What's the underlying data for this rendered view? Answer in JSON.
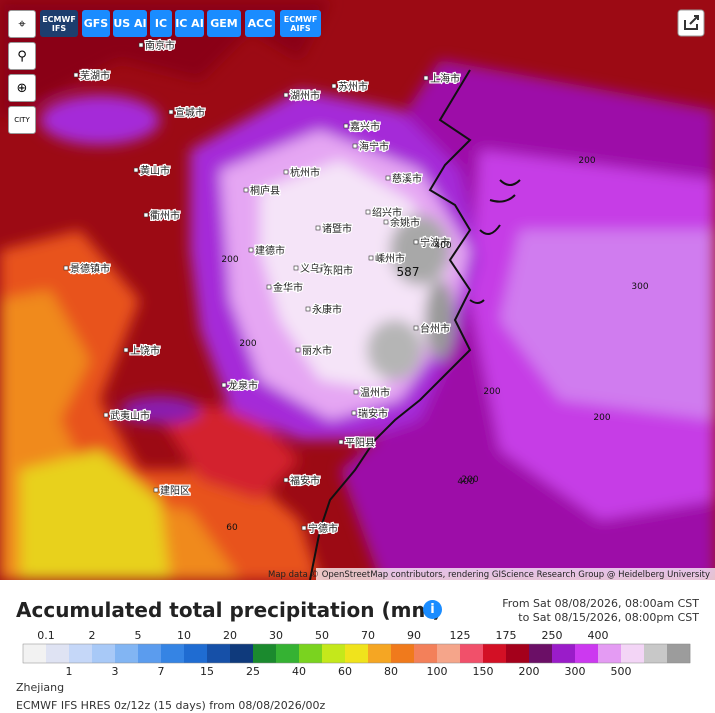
{
  "toolbar": {
    "models": [
      "ECMWF IFS",
      "GFS",
      "US AI",
      "IC",
      "IC AI",
      "GEM",
      "ACC",
      "ECMWF AIFS"
    ],
    "city_button": "CITY"
  },
  "map": {
    "cities": [
      "上海市",
      "苏州市",
      "嘉兴市",
      "湖州市",
      "杭州市",
      "绍兴市",
      "宁波市",
      "慈溪市",
      "余姚市",
      "诸暨市",
      "嵊州市",
      "义乌市",
      "东阳市",
      "金华市",
      "永康市",
      "衢州市",
      "丽水市",
      "台州市",
      "温州市",
      "瑞安市",
      "平阳县",
      "龙泉市",
      "黄山市",
      "宣城市",
      "上饶市",
      "景德镇市",
      "武夷山市",
      "建阳区",
      "福安市",
      "宁德市",
      "海宁市",
      "桐庐县",
      "建德市",
      "南京市",
      "芜湖市"
    ],
    "contour_labels": [
      "200",
      "200",
      "200",
      "300",
      "400",
      "587",
      "200",
      "200",
      "200",
      "60",
      "400"
    ],
    "attribution": "Map data © OpenStreetMap contributors, rendering GIScience Research Group @ Heidelberg University"
  },
  "legend": {
    "title": "Accumulated total precipitation (mm)",
    "from": "From Sat 08/08/2026, 08:00am CST",
    "to": "to Sat 08/15/2026, 08:00pm CST",
    "top_labels": [
      "0.1",
      "2",
      "5",
      "10",
      "20",
      "30",
      "50",
      "70",
      "90",
      "125",
      "175",
      "250",
      "400"
    ],
    "bottom_labels": [
      "1",
      "3",
      "7",
      "15",
      "25",
      "40",
      "60",
      "80",
      "100",
      "150",
      "200",
      "300",
      "500"
    ],
    "colors": [
      "#f2f2f2",
      "#dfe3f3",
      "#c5d7f8",
      "#a8c9f7",
      "#82b5f3",
      "#5b9cee",
      "#3584e4",
      "#1f6cd2",
      "#1650a8",
      "#0f3a7c",
      "#1b8a2e",
      "#35b233",
      "#7ad31f",
      "#c4e81b",
      "#f0e31c",
      "#f5a623",
      "#f07a1c",
      "#f3805a",
      "#f5a58a",
      "#f1506a",
      "#d31025",
      "#a4001b",
      "#6b0f66",
      "#9a1cc9",
      "#cc39f0",
      "#e49bf3",
      "#f3d5f6",
      "#c8c8c8",
      "#9c9c9c"
    ]
  },
  "footer": {
    "region": "Zhejiang",
    "model": "ECMWF IFS HRES 0z/12z (15 days) from 08/08/2026/00z"
  }
}
